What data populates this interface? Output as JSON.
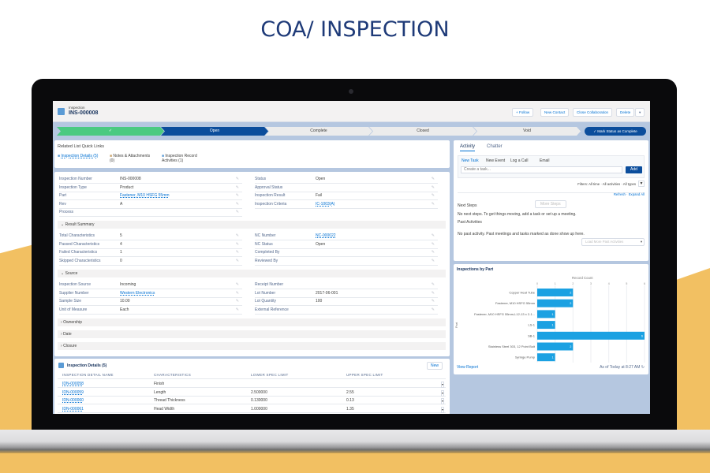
{
  "page_title": "COA/ INSPECTION",
  "colors": {
    "brand": "#1e3a78",
    "accent": "#f2c062",
    "path_complete": "#4bca81",
    "path_current": "#0b4d9c",
    "link": "#0070d2",
    "bar": "#1ba1e2"
  },
  "record": {
    "object": "Inspection",
    "name": "INS-000008",
    "actions": [
      "+ Follow",
      "New Contact",
      "Close Collaboration",
      "Delete"
    ]
  },
  "path": {
    "stages": [
      "✓",
      "Open",
      "Complete",
      "Closed",
      "Void"
    ],
    "mark_button": "✓ Mark Status as Complete"
  },
  "quick_links": {
    "title": "Related List Quick Links",
    "items": [
      "Inspection Details (5)",
      "Notes & Attachments (0)",
      "Inspection Record Activities (1)"
    ]
  },
  "details": {
    "left": [
      [
        "Inspection Number",
        "INS-000008"
      ],
      [
        "Inspection Type",
        "Product"
      ],
      [
        "Part",
        "Fastener, M10 HSFG 55mm"
      ],
      [
        "Rev",
        "A"
      ],
      [
        "Process",
        ""
      ]
    ],
    "right": [
      [
        "Status",
        "Open"
      ],
      [
        "Approval Status",
        ""
      ],
      [
        "Inspection Result",
        "Fail"
      ],
      [
        "Inspection Criteria",
        "IC-1003(A)"
      ]
    ],
    "result_summary": {
      "title": "Result Summary",
      "left": [
        [
          "Total Characteristics",
          "5"
        ],
        [
          "Passed Characteristics",
          "4"
        ],
        [
          "Failed Characteristics",
          "1"
        ],
        [
          "Skipped Characteristics",
          "0"
        ]
      ],
      "right": [
        [
          "NC Number",
          "NC-000022"
        ],
        [
          "NC Status",
          "Open"
        ],
        [
          "Completed By",
          ""
        ],
        [
          "Reviewed By",
          ""
        ]
      ]
    },
    "source": {
      "title": "Source",
      "left": [
        [
          "Inspection Source",
          "Incoming"
        ],
        [
          "Supplier Number",
          "Western Electronics"
        ],
        [
          "Sample Size",
          "10.00"
        ],
        [
          "Unit of Measure",
          "Each"
        ]
      ],
      "right": [
        [
          "Receipt Number",
          ""
        ],
        [
          "Lot Number",
          "2017-06-001"
        ],
        [
          "Lot Quantity",
          "100"
        ],
        [
          "External Reference",
          ""
        ]
      ]
    },
    "collapsed": [
      "Ownership",
      "Date",
      "Closure"
    ]
  },
  "inspection_details": {
    "title": "Inspection Details (5)",
    "new_button": "New",
    "columns": [
      "INSPECTION DETAIL NAME",
      "CHARACTERISTICS",
      "LOWER SPEC LIMIT",
      "UPPER SPEC LIMIT"
    ],
    "rows": [
      [
        "IDN-000058",
        "Finish",
        "",
        ""
      ],
      [
        "IDN-000059",
        "Length",
        "2.500000",
        "2.55"
      ],
      [
        "IDN-000060",
        "Thread Thickness",
        "0.130000",
        "0.13"
      ],
      [
        "IDN-000061",
        "Head Width",
        "1.000000",
        "1.35"
      ]
    ]
  },
  "activity": {
    "tabs": [
      "Activity",
      "Chatter"
    ],
    "subtabs": [
      "New Task",
      "New Event",
      "Log a Call",
      "Email"
    ],
    "task_placeholder": "Create a task...",
    "add_button": "Add",
    "filters": "Filters: All time · All activities · All types",
    "refresh": "Refresh · Expand All",
    "next_steps": "Next Steps",
    "more_steps": "More Steps",
    "next_steps_empty": "No next steps. To get things moving, add a task or set up a meeting.",
    "past_activities": "Past Activities",
    "past_empty": "No past activity. Past meetings and tasks marked as done show up here.",
    "load_more": "Load More Past Activities"
  },
  "chart_data": {
    "type": "bar",
    "orientation": "horizontal",
    "title": "Inspections by Part",
    "xlabel": "Record Count",
    "ylabel": "Part",
    "xlim": [
      0,
      6
    ],
    "ticks": [
      "0",
      "1",
      "2",
      "3",
      "4",
      "5",
      "6"
    ],
    "grid": true,
    "categories": [
      "Copper Heat Tube",
      "Fastener, M10 HSFG 55mm",
      "Fastener, M10 HSFG 55mm,L12-13 x 2-1/2...",
      "LS-1",
      "SB-1",
      "Stainless Steel 303, 12 Point Bolt",
      "Syringe Pump"
    ],
    "values": [
      2,
      2,
      1,
      1,
      6,
      2,
      1
    ],
    "footer_link": "View Report",
    "timestamp": "As of Today at 8:27 AM"
  }
}
